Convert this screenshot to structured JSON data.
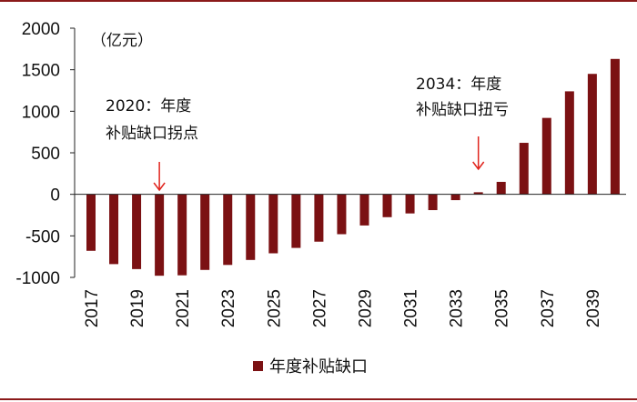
{
  "chart_data": {
    "type": "bar",
    "unit_label": "（亿元）",
    "categories": [
      "2017",
      "2018",
      "2019",
      "2020",
      "2021",
      "2022",
      "2023",
      "2024",
      "2025",
      "2026",
      "2027",
      "2028",
      "2029",
      "2030",
      "2031",
      "2032",
      "2033",
      "2034",
      "2035",
      "2036",
      "2037",
      "2038",
      "2039",
      "2040"
    ],
    "x_tick_labels": [
      "2017",
      "2019",
      "2021",
      "2023",
      "2025",
      "2027",
      "2029",
      "2031",
      "2033",
      "2035",
      "2037",
      "2039"
    ],
    "series": [
      {
        "name": "年度补贴缺口",
        "color": "#7b1113",
        "values": [
          -680,
          -840,
          -900,
          -980,
          -975,
          -910,
          -850,
          -790,
          -710,
          -645,
          -570,
          -480,
          -375,
          -275,
          -230,
          -190,
          -70,
          25,
          150,
          620,
          920,
          1240,
          1450,
          1630
        ]
      }
    ],
    "ylim": [
      -1000,
      2000
    ],
    "y_ticks": [
      2000,
      1500,
      1000,
      500,
      0,
      -500,
      -1000
    ],
    "grid": false,
    "legend_position": "bottom-center",
    "annotations": [
      {
        "year": "2020",
        "line1": "2020：年度",
        "line2": "补贴缺口拐点",
        "arrow_color": "#e0231c"
      },
      {
        "year": "2034",
        "line1": "2034：年度",
        "line2": "补贴缺口扭亏",
        "arrow_color": "#e0231c"
      }
    ]
  }
}
